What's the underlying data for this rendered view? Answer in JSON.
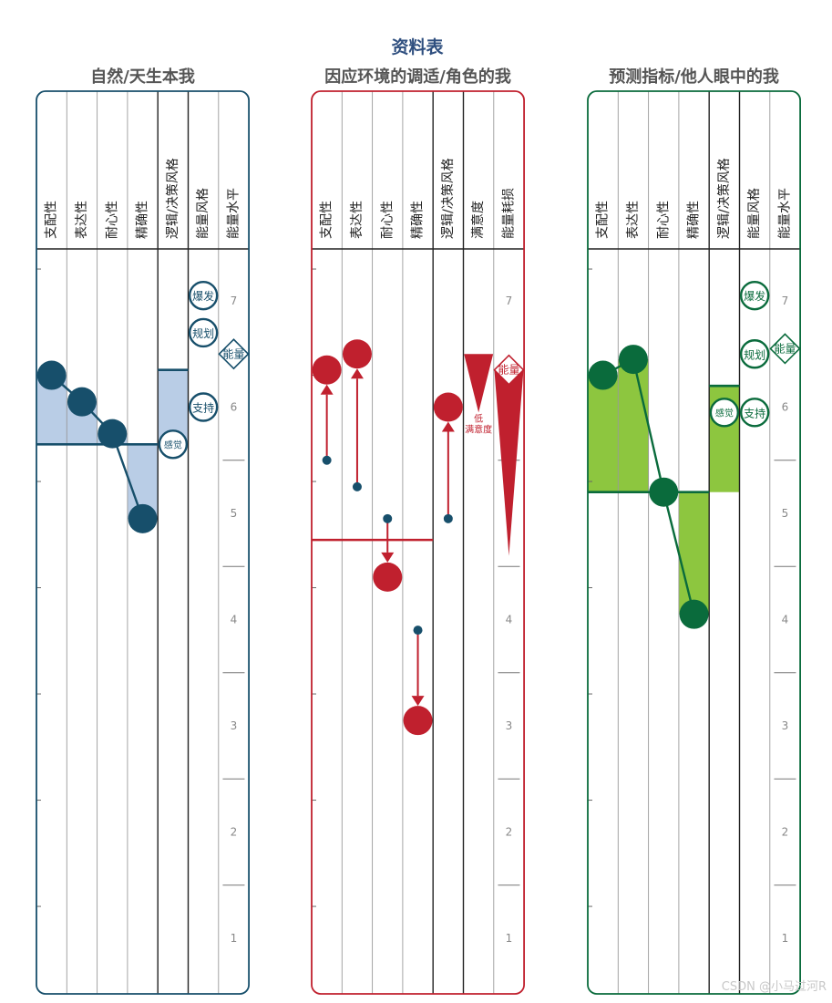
{
  "title": "资料表",
  "watermark": "CSDN @小马过河R",
  "chart_data": [
    {
      "type": "profile",
      "title": "自然/天生本我",
      "color": "#174f6b",
      "fill": "#b9cde6",
      "columns": [
        "支配性",
        "表达性",
        "耐心性",
        "精确性",
        "逻辑/决策风格",
        "能量风格",
        "能量水平"
      ],
      "scale_ticks": [
        "1",
        "2",
        "3",
        "4",
        "5",
        "6",
        "7"
      ],
      "midline": 5.65,
      "trait_values": [
        6.3,
        6.05,
        5.75,
        4.95
      ],
      "logic_value": 6.35,
      "energy_badges": [
        {
          "label": "爆发",
          "value": 7.05
        },
        {
          "label": "规划",
          "value": 6.7
        },
        {
          "label": "支持",
          "value": 6.0
        }
      ],
      "sense_badge": {
        "label": "感觉",
        "value": 5.65
      },
      "energy_level": {
        "label": "能量",
        "value": 6.5
      }
    },
    {
      "type": "adapt",
      "title": "因应环境的调适/角色的我",
      "color": "#c0202e",
      "columns": [
        "支配性",
        "表达性",
        "耐心性",
        "精确性",
        "逻辑/决策风格",
        "满意度",
        "能量耗损"
      ],
      "scale_ticks": [
        "1",
        "2",
        "3",
        "4",
        "5",
        "6",
        "7"
      ],
      "midline": 4.75,
      "arrows": [
        {
          "from": 5.5,
          "to": 6.35
        },
        {
          "from": 5.25,
          "to": 6.5
        },
        {
          "from": 4.95,
          "to": 4.4
        },
        {
          "from": 3.9,
          "to": 3.05
        },
        {
          "from": 4.95,
          "to": 6.0
        }
      ],
      "satisfaction": {
        "top": 6.5,
        "bottom": 5.95,
        "label1": "低",
        "label2": "满意度"
      },
      "energy_drain": {
        "label": "能量",
        "top": 6.35,
        "bottom": 4.6
      }
    },
    {
      "type": "profile",
      "title": "预测指标/他人眼中的我",
      "color": "#0a6b3c",
      "fill": "#8dc63f",
      "columns": [
        "支配性",
        "表达性",
        "耐心性",
        "精确性",
        "逻辑/决策风格",
        "能量风格",
        "能量水平"
      ],
      "scale_ticks": [
        "1",
        "2",
        "3",
        "4",
        "5",
        "6",
        "7"
      ],
      "midline": 5.2,
      "trait_values": [
        6.3,
        6.45,
        5.2,
        4.05
      ],
      "logic_value": 6.2,
      "energy_badges": [
        {
          "label": "爆发",
          "value": 7.05
        },
        {
          "label": "规划",
          "value": 6.5
        },
        {
          "label": "支持",
          "value": 5.95
        }
      ],
      "sense_badge": {
        "label": "感觉",
        "value": 5.95
      },
      "energy_level": {
        "label": "能量",
        "value": 6.55
      }
    }
  ]
}
